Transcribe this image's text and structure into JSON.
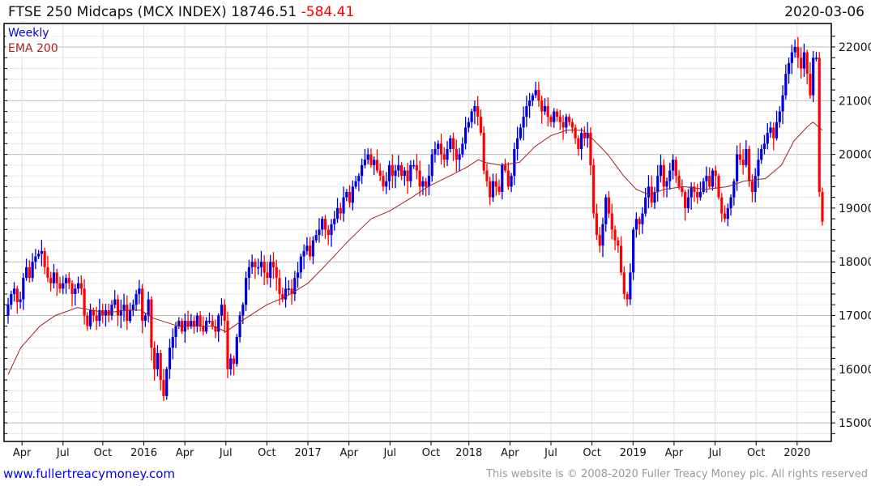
{
  "header": {
    "title": "FTSE 250 Midcaps (MCX INDEX) 18746.51",
    "change": "-584.41",
    "date": "2020-03-06"
  },
  "footer": {
    "link": "www.fullertreacymoney.com",
    "copyright": "This website is © 2008-2020 Fuller Treacy Money plc. All rights reserved"
  },
  "colors": {
    "up": "#0000dd",
    "down": "#ff0000",
    "ema": "#a02020"
  },
  "chart_data": {
    "type": "candlestick",
    "title": "FTSE 250 Midcaps (MCX INDEX)",
    "legend": [
      "Weekly",
      "EMA 200"
    ],
    "legend_position": "top-left",
    "ylim": [
      14700,
      22300
    ],
    "yticks": [
      15000,
      16000,
      17000,
      18000,
      19000,
      20000,
      21000,
      22000
    ],
    "xticks": [
      {
        "label": "Apr",
        "week": 4.4
      },
      {
        "label": "Jul",
        "week": 17.4
      },
      {
        "label": "Oct",
        "week": 30
      },
      {
        "label": "2016",
        "week": 43
      },
      {
        "label": "Apr",
        "week": 56
      },
      {
        "label": "Jul",
        "week": 69
      },
      {
        "label": "Oct",
        "week": 82
      },
      {
        "label": "2017",
        "week": 95
      },
      {
        "label": "Apr",
        "week": 108
      },
      {
        "label": "Jul",
        "week": 121
      },
      {
        "label": "Oct",
        "week": 134
      },
      {
        "label": "2018",
        "week": 146
      },
      {
        "label": "Apr",
        "week": 159
      },
      {
        "label": "Jul",
        "week": 172
      },
      {
        "label": "Oct",
        "week": 185
      },
      {
        "label": "2019",
        "week": 198
      },
      {
        "label": "Apr",
        "week": 211
      },
      {
        "label": "Jul",
        "week": 224
      },
      {
        "label": "Oct",
        "week": 237
      },
      {
        "label": "2020",
        "week": 250
      }
    ],
    "total_weeks": 258,
    "weekly_close": [
      17200,
      17400,
      17500,
      17250,
      17300,
      17700,
      17900,
      17700,
      18000,
      18100,
      18150,
      18200,
      17900,
      17700,
      17600,
      17800,
      17600,
      17500,
      17600,
      17700,
      17600,
      17400,
      17500,
      17600,
      17500,
      17000,
      16800,
      17100,
      17000,
      16900,
      17100,
      17000,
      17100,
      17000,
      17200,
      17300,
      17000,
      17100,
      17200,
      16900,
      17100,
      17200,
      17400,
      17500,
      16900,
      17000,
      17300,
      16400,
      16000,
      16300,
      15800,
      15500,
      16000,
      16400,
      16600,
      16800,
      16900,
      16700,
      16900,
      16800,
      16900,
      16800,
      17000,
      16800,
      16700,
      16900,
      16900,
      16800,
      16700,
      17000,
      17200,
      16900,
      16000,
      16200,
      16100,
      16600,
      17000,
      17200,
      17700,
      17900,
      18000,
      17900,
      17900,
      18000,
      17800,
      17700,
      18000,
      17900,
      17700,
      17400,
      17300,
      17500,
      17500,
      17400,
      17700,
      17800,
      18100,
      18200,
      18300,
      18100,
      18400,
      18500,
      18600,
      18800,
      18600,
      18500,
      18700,
      18800,
      19000,
      18900,
      19200,
      19300,
      19100,
      19400,
      19500,
      19600,
      19800,
      19900,
      20000,
      19800,
      19900,
      19700,
      19600,
      19400,
      19500,
      19800,
      19600,
      19700,
      19800,
      19600,
      19700,
      19500,
      19800,
      19800,
      19700,
      19400,
      19500,
      19400,
      19600,
      20000,
      20100,
      20200,
      20000,
      19900,
      20100,
      20300,
      20100,
      19900,
      20000,
      20200,
      20500,
      20600,
      20800,
      20900,
      20700,
      20400,
      19700,
      19500,
      19200,
      19500,
      19400,
      19300,
      19800,
      19700,
      19400,
      19600,
      20100,
      20300,
      20500,
      20700,
      20900,
      21000,
      21100,
      21200,
      21000,
      20800,
      20900,
      20700,
      20600,
      20800,
      20700,
      20600,
      20500,
      20700,
      20600,
      20500,
      20300,
      20100,
      20400,
      20300,
      20400,
      19800,
      18900,
      18500,
      18300,
      18700,
      19200,
      18900,
      18600,
      18400,
      18300,
      17800,
      17400,
      17300,
      17800,
      18600,
      18800,
      18700,
      18900,
      19200,
      19400,
      19100,
      19300,
      19600,
      19800,
      19400,
      19500,
      19700,
      19900,
      19600,
      19400,
      19300,
      19000,
      19200,
      19400,
      19300,
      19200,
      19300,
      19500,
      19600,
      19400,
      19700,
      19600,
      19200,
      18900,
      18800,
      19000,
      19200,
      19500,
      20000,
      19900,
      19800,
      20100,
      19500,
      19300,
      19600,
      19900,
      20100,
      20200,
      20400,
      20500,
      20300,
      20600,
      20800,
      21100,
      21500,
      21700,
      21900,
      22000,
      21800,
      21600,
      21900,
      21500,
      21100,
      21800,
      21800,
      19300,
      18746.51
    ],
    "ema200": [
      [
        0,
        15900
      ],
      [
        4,
        16400
      ],
      [
        10,
        16800
      ],
      [
        15,
        17000
      ],
      [
        22,
        17150
      ],
      [
        31,
        17050
      ],
      [
        38,
        17100
      ],
      [
        42,
        17100
      ],
      [
        46,
        16950
      ],
      [
        54,
        16800
      ],
      [
        60,
        16800
      ],
      [
        65,
        16800
      ],
      [
        69,
        16700
      ],
      [
        74,
        16900
      ],
      [
        82,
        17200
      ],
      [
        88,
        17350
      ],
      [
        95,
        17600
      ],
      [
        100,
        17900
      ],
      [
        108,
        18400
      ],
      [
        115,
        18800
      ],
      [
        121,
        18950
      ],
      [
        128,
        19200
      ],
      [
        133,
        19400
      ],
      [
        140,
        19600
      ],
      [
        145,
        19750
      ],
      [
        149,
        19900
      ],
      [
        151,
        19850
      ],
      [
        156,
        19800
      ],
      [
        162,
        19850
      ],
      [
        167,
        20150
      ],
      [
        172,
        20350
      ],
      [
        177,
        20450
      ],
      [
        182,
        20450
      ],
      [
        185,
        20300
      ],
      [
        190,
        20000
      ],
      [
        195,
        19600
      ],
      [
        199,
        19350
      ],
      [
        203,
        19250
      ],
      [
        208,
        19350
      ],
      [
        214,
        19400
      ],
      [
        221,
        19350
      ],
      [
        228,
        19400
      ],
      [
        233,
        19500
      ],
      [
        240,
        19550
      ],
      [
        245,
        19800
      ],
      [
        249,
        20250
      ],
      [
        253,
        20500
      ],
      [
        255,
        20600
      ],
      [
        258,
        20450
      ]
    ]
  }
}
